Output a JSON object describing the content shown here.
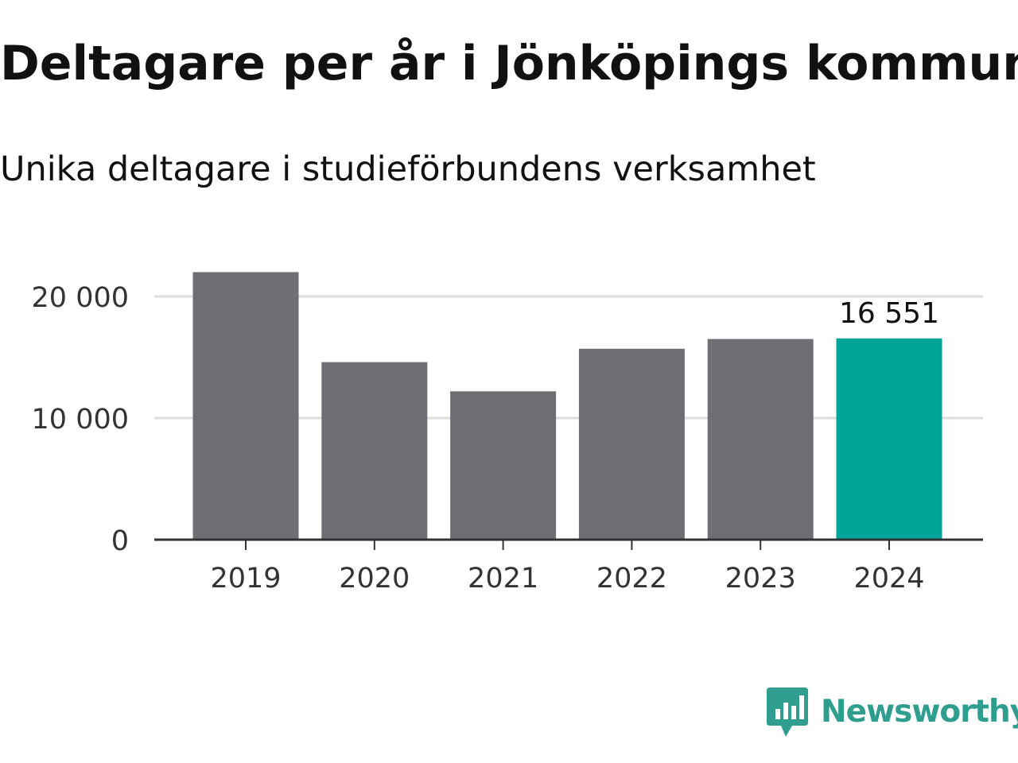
{
  "title": "Deltagare per år i Jönköpings kommun",
  "subtitle": "Unika deltagare i studieförbundens verksamhet",
  "brand": {
    "name": "Newsworthy",
    "icon": "bar-chart-speech-bubble-icon",
    "color": "#2f9e8f"
  },
  "chart_data": {
    "type": "bar",
    "title": "Deltagare per år i Jönköpings kommun",
    "subtitle": "Unika deltagare i studieförbundens verksamhet",
    "xlabel": "",
    "ylabel": "",
    "categories": [
      "2019",
      "2020",
      "2021",
      "2022",
      "2023",
      "2024"
    ],
    "values": [
      22000,
      14600,
      12200,
      15700,
      16500,
      16551
    ],
    "ylim": [
      0,
      22000
    ],
    "yticks": [
      0,
      10000,
      20000
    ],
    "ytick_labels": [
      "0",
      "10 000",
      "20 000"
    ],
    "grid": true,
    "legend": "none",
    "highlight_index": 5,
    "highlight_label": "16 551",
    "colors": {
      "bar": "#6f6e75",
      "highlight": "#00a59a",
      "grid": "#dddddd",
      "axis": "#333333"
    }
  }
}
